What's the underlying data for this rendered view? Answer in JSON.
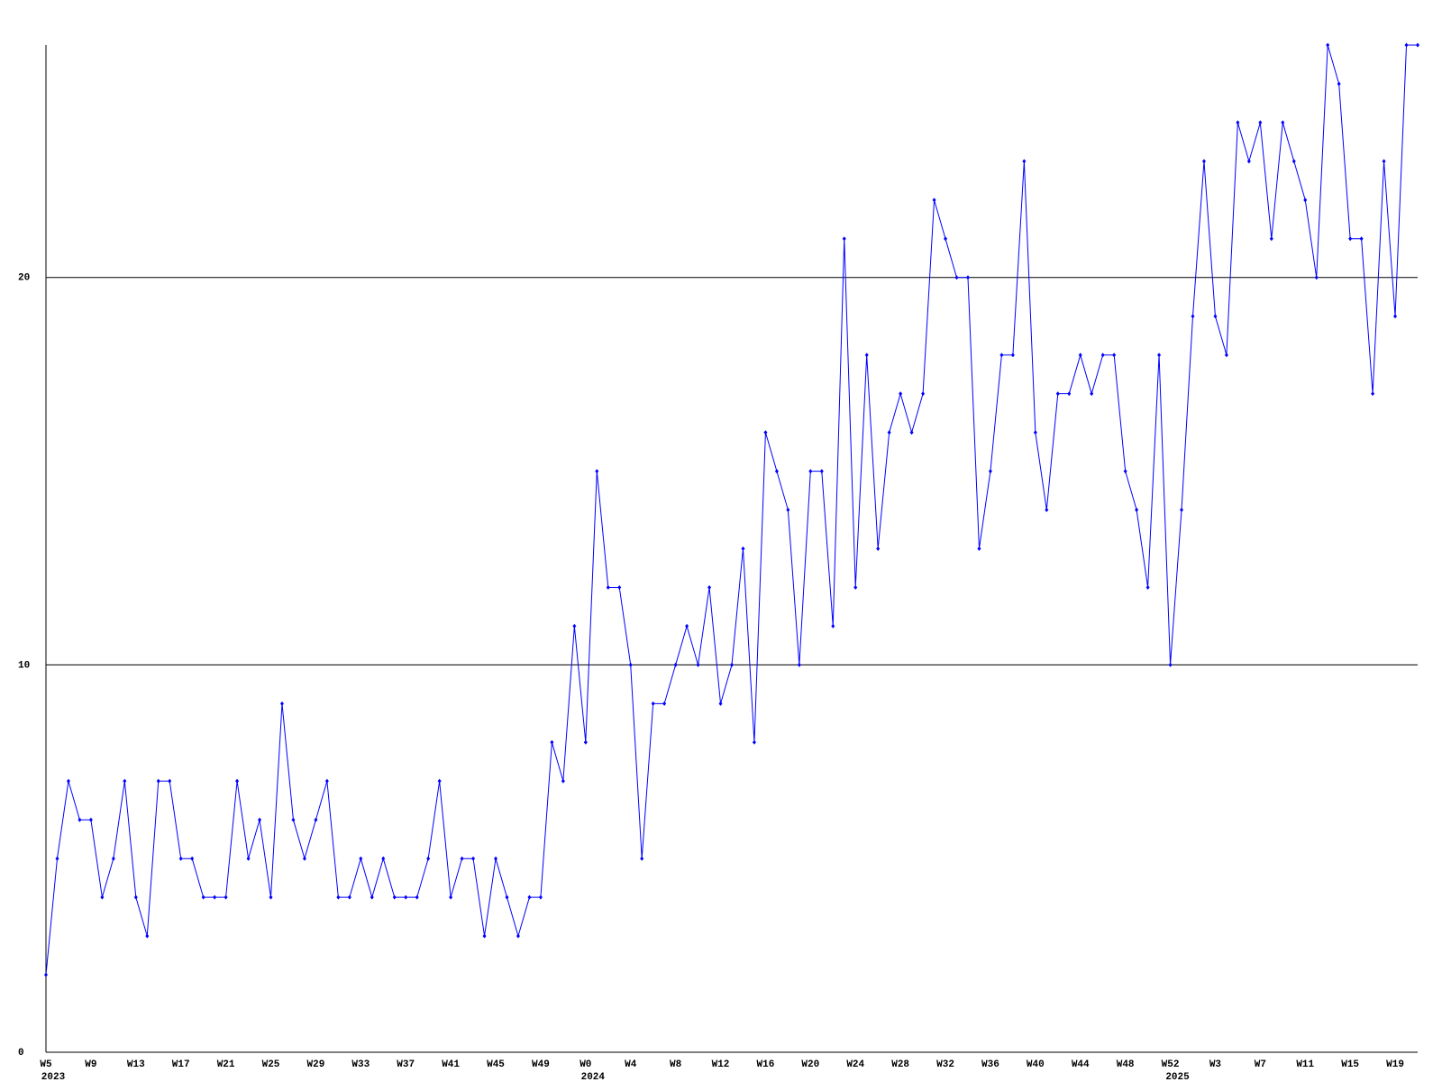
{
  "chart_data": {
    "type": "line",
    "categories": [
      "W5",
      null,
      null,
      null,
      "W9",
      null,
      null,
      null,
      "W13",
      null,
      null,
      null,
      "W17",
      null,
      null,
      null,
      "W21",
      null,
      null,
      null,
      "W25",
      null,
      null,
      null,
      "W29",
      null,
      null,
      null,
      "W33",
      null,
      null,
      null,
      "W37",
      null,
      null,
      null,
      "W41",
      null,
      null,
      null,
      "W45",
      null,
      null,
      null,
      "W49",
      null,
      null,
      null,
      "W0",
      null,
      null,
      null,
      "W4",
      null,
      null,
      null,
      "W8",
      null,
      null,
      null,
      "W12",
      null,
      null,
      null,
      "W16",
      null,
      null,
      null,
      "W20",
      null,
      null,
      null,
      "W24",
      null,
      null,
      null,
      "W28",
      null,
      null,
      null,
      "W32",
      null,
      null,
      null,
      "W36",
      null,
      null,
      null,
      "W40",
      null,
      null,
      null,
      "W44",
      null,
      null,
      null,
      "W48",
      null,
      null,
      null,
      "W52",
      null,
      null,
      null,
      "W3",
      null,
      null,
      null,
      "W7",
      null,
      null,
      null,
      "W11",
      null,
      null,
      null,
      "W15",
      null,
      null,
      null,
      "W19",
      null,
      null
    ],
    "years": [
      "2023",
      null,
      null,
      null,
      null,
      null,
      null,
      null,
      null,
      null,
      null,
      null,
      null,
      null,
      null,
      null,
      null,
      null,
      null,
      null,
      null,
      null,
      null,
      null,
      null,
      null,
      null,
      null,
      null,
      null,
      null,
      null,
      null,
      null,
      null,
      null,
      null,
      null,
      null,
      null,
      null,
      null,
      null,
      null,
      null,
      null,
      null,
      null,
      "2024",
      null,
      null,
      null,
      null,
      null,
      null,
      null,
      null,
      null,
      null,
      null,
      null,
      null,
      null,
      null,
      null,
      null,
      null,
      null,
      null,
      null,
      null,
      null,
      null,
      null,
      null,
      null,
      null,
      null,
      null,
      null,
      null,
      null,
      null,
      null,
      null,
      null,
      null,
      null,
      null,
      null,
      null,
      null,
      null,
      null,
      null,
      null,
      null,
      null,
      null,
      null,
      "2025",
      null,
      null,
      null,
      null,
      null,
      null,
      null,
      null,
      null,
      null,
      null,
      null,
      null,
      null,
      null,
      null,
      null,
      null,
      null,
      null,
      null,
      null
    ],
    "series": [
      {
        "color": "#0000ff",
        "values": [
          2,
          5,
          7,
          6,
          6,
          4,
          5,
          7,
          4,
          3,
          7,
          7,
          5,
          5,
          4,
          4,
          4,
          7,
          5,
          6,
          4,
          9,
          6,
          5,
          6,
          7,
          4,
          4,
          5,
          4,
          5,
          4,
          4,
          4,
          5,
          7,
          4,
          5,
          5,
          3,
          5,
          4,
          3,
          4,
          4,
          8,
          7,
          11,
          8,
          15,
          12,
          12,
          10,
          5,
          9,
          9,
          10,
          11,
          10,
          12,
          9,
          10,
          13,
          8,
          16,
          15,
          14,
          10,
          15,
          15,
          11,
          21,
          12,
          18,
          13,
          16,
          17,
          16,
          17,
          22,
          21,
          20,
          20,
          13,
          15,
          18,
          18,
          23,
          16,
          14,
          17,
          17,
          18,
          17,
          18,
          18,
          15,
          14,
          12,
          18,
          10,
          14,
          19,
          23,
          19,
          18,
          24,
          23,
          24,
          21,
          24,
          23,
          22,
          20,
          26,
          25,
          21,
          21,
          17,
          23,
          19,
          26,
          26
        ]
      }
    ],
    "ylim": [
      0,
      26
    ],
    "yticks": [
      0,
      10,
      20
    ],
    "grid": true
  }
}
